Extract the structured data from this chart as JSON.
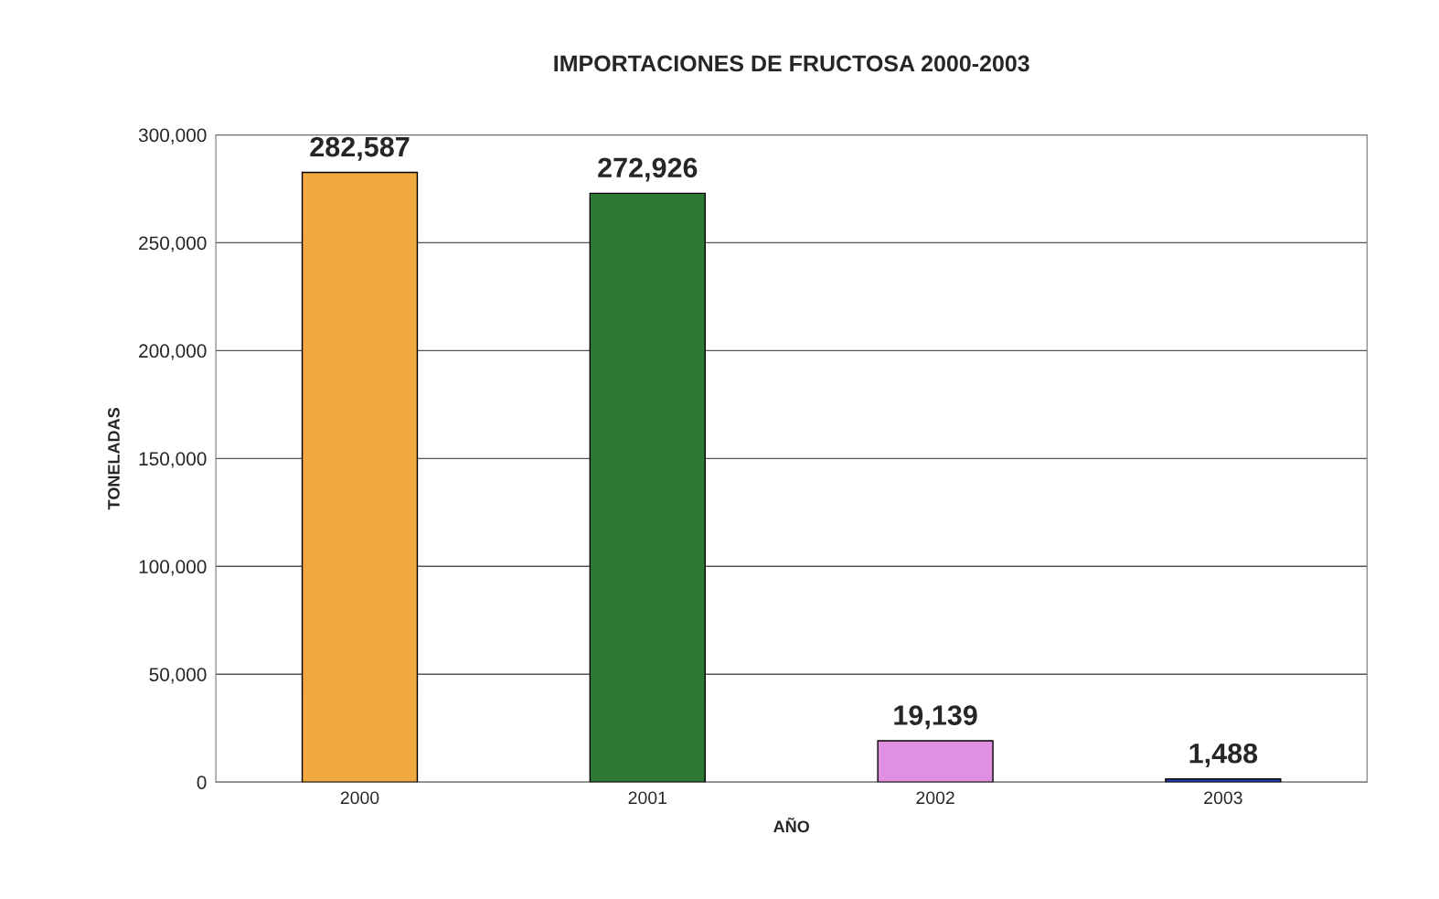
{
  "chart_data": {
    "type": "bar",
    "title": "IMPORTACIONES DE FRUCTOSA 2000-2003",
    "xlabel": "AÑO",
    "ylabel": "TONELADAS",
    "categories": [
      "2000",
      "2001",
      "2002",
      "2003"
    ],
    "values": [
      282587,
      272926,
      19139,
      1488
    ],
    "colors": [
      "#f0a840",
      "#2e7a35",
      "#e090e0",
      "#2840b0"
    ],
    "value_labels": [
      "282,587",
      "272,926",
      "19,139",
      "1,488"
    ],
    "ylim": [
      0,
      300000
    ],
    "yticks": [
      0,
      {
        "value": 50000,
        "label": "50,000"
      },
      {
        "value": 100000,
        "label": "100,000"
      },
      {
        "value": 150000,
        "label": "150,000"
      },
      {
        "value": 200000,
        "label": "200,000"
      },
      {
        "value": 250000,
        "label": "250,000"
      },
      {
        "value": 300000,
        "label": "300,000"
      }
    ],
    "grid": "y"
  }
}
